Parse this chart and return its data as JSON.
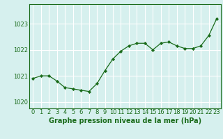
{
  "x": [
    0,
    1,
    2,
    3,
    4,
    5,
    6,
    7,
    8,
    9,
    10,
    11,
    12,
    13,
    14,
    15,
    16,
    17,
    18,
    19,
    20,
    21,
    22,
    23
  ],
  "y": [
    1020.9,
    1021.0,
    1021.0,
    1020.8,
    1020.55,
    1020.5,
    1020.45,
    1020.4,
    1020.7,
    1021.2,
    1021.65,
    1021.95,
    1022.15,
    1022.25,
    1022.25,
    1022.0,
    1022.25,
    1022.3,
    1022.15,
    1022.05,
    1022.05,
    1022.15,
    1022.55,
    1023.2
  ],
  "line_color": "#1a6b1a",
  "marker_color": "#1a6b1a",
  "bg_color": "#d6f0ee",
  "grid_color": "#ffffff",
  "xlabel": "Graphe pression niveau de la mer (hPa)",
  "ylim": [
    1019.75,
    1023.75
  ],
  "yticks": [
    1020,
    1021,
    1022,
    1023
  ],
  "xticks": [
    0,
    1,
    2,
    3,
    4,
    5,
    6,
    7,
    8,
    9,
    10,
    11,
    12,
    13,
    14,
    15,
    16,
    17,
    18,
    19,
    20,
    21,
    22,
    23
  ],
  "xlabel_fontsize": 7.0,
  "tick_fontsize": 6.0
}
